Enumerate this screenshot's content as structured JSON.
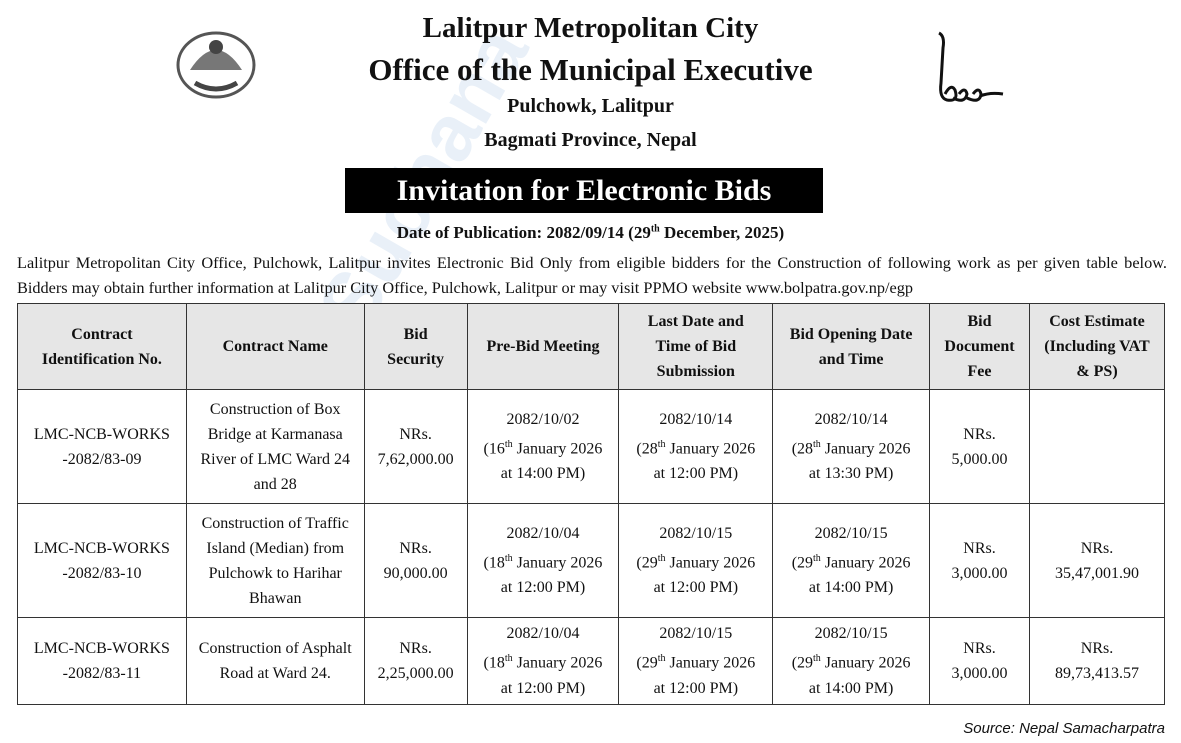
{
  "header": {
    "line1": "Lalitpur Metropolitan City",
    "line2": "Office of the Municipal Executive",
    "line3": "Pulchowk, Lalitpur",
    "line4": "Bagmati Province, Nepal"
  },
  "banner": "Invitation for Electronic Bids",
  "publication": {
    "prefix": "Date of Publication: 2082/09/14 (29",
    "sup": "th",
    "suffix": " December, 2025)"
  },
  "paragraph": "Lalitpur Metropolitan City Office, Pulchowk, Lalitpur invites Electronic Bid Only from eligible bidders for the Construction of following work as per given table below. Bidders may obtain further information at Lalitpur City Office, Pulchowk, Lalitpur or may visit PPMO website www.bolpatra.gov.np/egp",
  "table": {
    "headers": [
      "Contract Identification No.",
      "Contract Name",
      "Bid Security",
      "Pre-Bid Meeting",
      "Last Date and Time of Bid Submission",
      "Bid Opening Date and Time",
      "Bid Document Fee",
      "Cost Estimate (Including VAT & PS)"
    ],
    "rows": [
      {
        "id": "LMC-NCB-WORKS -2082/83-09",
        "name": "Construction of Box Bridge at Karmanasa River of LMC Ward 24 and 28",
        "security": "NRs. 7,62,000.00",
        "prebid": {
          "date": "2082/10/02",
          "day": "(16",
          "sup": "th",
          "rest": " January 2026",
          "time": "at 14:00 PM)"
        },
        "submission": {
          "date": "2082/10/14",
          "day": "(28",
          "sup": "th",
          "rest": " January 2026",
          "time": "at 12:00 PM)"
        },
        "opening": {
          "date": "2082/10/14",
          "day": "(28",
          "sup": "th",
          "rest": " January 2026",
          "time": "at 13:30 PM)"
        },
        "fee": "NRs. 5,000.00",
        "estimate": ""
      },
      {
        "id": "LMC-NCB-WORKS -2082/83-10",
        "name": "Construction of Traffic Island (Median) from Pulchowk to Harihar Bhawan",
        "security": "NRs. 90,000.00",
        "prebid": {
          "date": "2082/10/04",
          "day": "(18",
          "sup": "th",
          "rest": " January 2026",
          "time": "at 12:00 PM)"
        },
        "submission": {
          "date": "2082/10/15",
          "day": "(29",
          "sup": "th",
          "rest": " January 2026",
          "time": "at 12:00 PM)"
        },
        "opening": {
          "date": "2082/10/15",
          "day": "(29",
          "sup": "th",
          "rest": " January 2026",
          "time": "at 14:00 PM)"
        },
        "fee": "NRs. 3,000.00",
        "estimate": "NRs. 35,47,001.90"
      },
      {
        "id": "LMC-NCB-WORKS -2082/83-11",
        "name": "Construction of Asphalt Road at Ward 24.",
        "security": "NRs. 2,25,000.00",
        "prebid": {
          "date": "2082/10/04",
          "day": "(18",
          "sup": "th",
          "rest": " January 2026",
          "time": "at 12:00 PM)"
        },
        "submission": {
          "date": "2082/10/15",
          "day": "(29",
          "sup": "th",
          "rest": " January 2026",
          "time": "at 12:00 PM)"
        },
        "opening": {
          "date": "2082/10/15",
          "day": "(29",
          "sup": "th",
          "rest": " January 2026",
          "time": "at 14:00 PM)"
        },
        "fee": "NRs. 3,000.00",
        "estimate": "NRs. 89,73,413.57"
      }
    ]
  },
  "source": "Source: Nepal Samacharpatra",
  "watermark": "Suchana"
}
